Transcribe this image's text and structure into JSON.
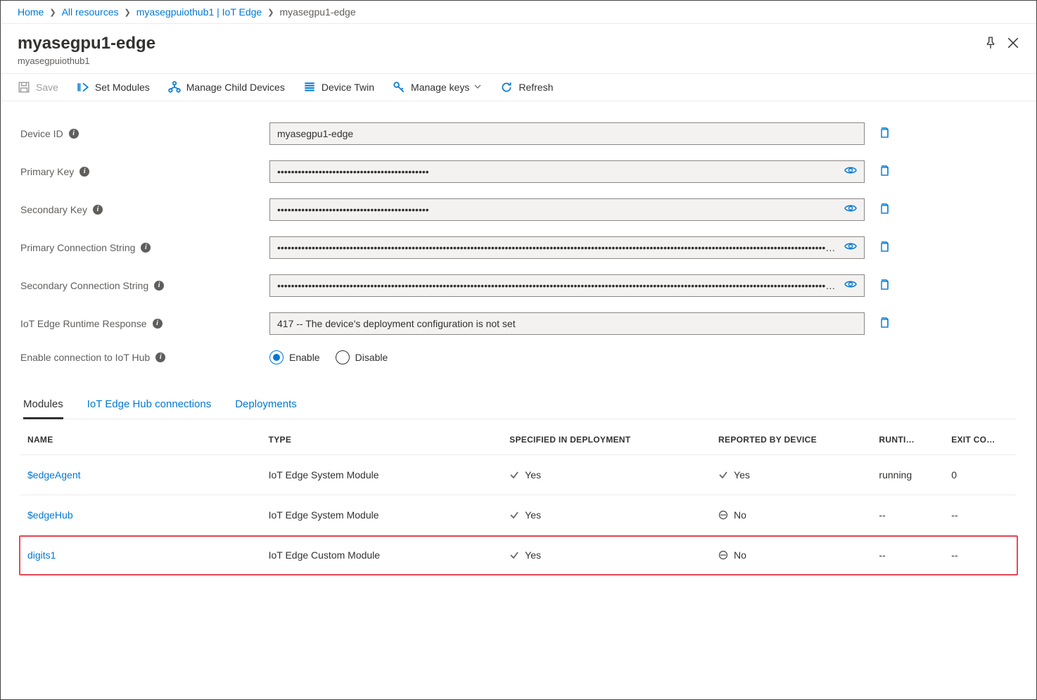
{
  "breadcrumb": {
    "items": [
      {
        "label": "Home"
      },
      {
        "label": "All resources"
      },
      {
        "label": "myasegpuiothub1 | IoT Edge"
      }
    ],
    "current": "myasegpu1-edge"
  },
  "header": {
    "title": "myasegpu1-edge",
    "subtitle": "myasegpuiothub1"
  },
  "toolbar": {
    "save": "Save",
    "setModules": "Set Modules",
    "manageChildDevices": "Manage Child Devices",
    "deviceTwin": "Device Twin",
    "manageKeys": "Manage keys",
    "refresh": "Refresh"
  },
  "fields": {
    "deviceId": {
      "label": "Device ID",
      "value": "myasegpu1-edge",
      "hasEye": false,
      "hasCopy": true
    },
    "primaryKey": {
      "label": "Primary Key",
      "value": "••••••••••••••••••••••••••••••••••••••••••••",
      "hasEye": true,
      "hasCopy": true
    },
    "secondaryKey": {
      "label": "Secondary Key",
      "value": "••••••••••••••••••••••••••••••••••••••••••••",
      "hasEye": true,
      "hasCopy": true
    },
    "primaryConn": {
      "label": "Primary Connection String",
      "value": "•••••••••••••••••••••••••••••••••••••••••••••••••••••••••••••••••••••••••••••••••••••••••••••••••••••••••••••••••••••••••••••••••••••••••••••••••••••••••••••••••••••••••",
      "hasEye": true,
      "hasCopy": true
    },
    "secondaryConn": {
      "label": "Secondary Connection String",
      "value": "•••••••••••••••••••••••••••••••••••••••••••••••••••••••••••••••••••••••••••••••••••••••••••••••••••••••••••••••••••••••••••••••••••••••••••••••••••••••••••••••••••••••••",
      "hasEye": true,
      "hasCopy": true
    },
    "runtimeResponse": {
      "label": "IoT Edge Runtime Response",
      "value": "417 -- The device's deployment configuration is not set",
      "hasEye": false,
      "hasCopy": true
    },
    "enableConn": {
      "label": "Enable connection to IoT Hub",
      "options": {
        "enable": "Enable",
        "disable": "Disable"
      },
      "selected": "enable"
    }
  },
  "tabs": {
    "modules": "Modules",
    "iotEdgeHubConns": "IoT Edge Hub connections",
    "deployments": "Deployments",
    "active": "modules"
  },
  "table": {
    "columns": {
      "name": "NAME",
      "type": "TYPE",
      "specified": "SPECIFIED IN DEPLOYMENT",
      "reported": "REPORTED BY DEVICE",
      "runtime": "RUNTI…",
      "exitCode": "EXIT CO…"
    },
    "rows": [
      {
        "name": "$edgeAgent",
        "type": "IoT Edge System Module",
        "specified": "Yes",
        "specifiedOk": true,
        "reported": "Yes",
        "reportedOk": true,
        "runtime": "running",
        "exitCode": "0",
        "highlight": false
      },
      {
        "name": "$edgeHub",
        "type": "IoT Edge System Module",
        "specified": "Yes",
        "specifiedOk": true,
        "reported": "No",
        "reportedOk": false,
        "runtime": "--",
        "exitCode": "--",
        "highlight": false
      },
      {
        "name": "digits1",
        "type": "IoT Edge Custom Module",
        "specified": "Yes",
        "specifiedOk": true,
        "reported": "No",
        "reportedOk": false,
        "runtime": "--",
        "exitCode": "--",
        "highlight": true
      }
    ]
  },
  "colors": {
    "link": "#0078d4",
    "text": "#323130",
    "muted": "#605e5c",
    "border": "#edebe9",
    "inputBg": "#f3f2f1",
    "inputBorder": "#8a8886",
    "highlight": "#e74856"
  }
}
